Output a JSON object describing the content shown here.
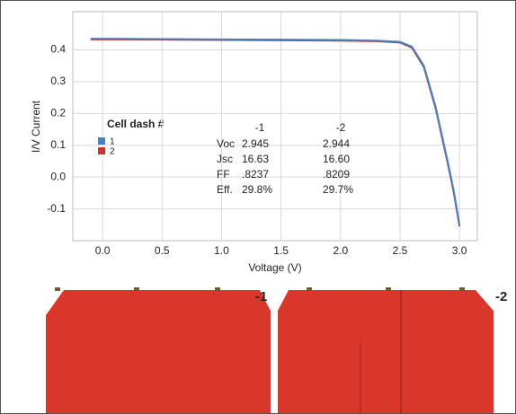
{
  "chart_data": {
    "type": "line",
    "x_label": "Voltage (V)",
    "y_label": "I/V Current",
    "x": [
      -0.1,
      0,
      0.5,
      1,
      1.5,
      2,
      2.3,
      2.5,
      2.6,
      2.7,
      2.8,
      2.9,
      2.95,
      3.0
    ],
    "series": [
      {
        "name": "1",
        "color": "#4a7fc0",
        "values": [
          0.435,
          0.435,
          0.434,
          0.433,
          0.432,
          0.431,
          0.429,
          0.425,
          0.41,
          0.35,
          0.22,
          0.05,
          -0.04,
          -0.15
        ]
      },
      {
        "name": "2",
        "color": "#c0392b",
        "values": [
          0.433,
          0.433,
          0.432,
          0.431,
          0.43,
          0.429,
          0.427,
          0.423,
          0.407,
          0.346,
          0.215,
          0.045,
          -0.045,
          -0.155
        ]
      }
    ],
    "legend_title": "Cell dash #",
    "xlim": [
      -0.25,
      3.15
    ],
    "ylim": [
      -0.2,
      0.52
    ],
    "xticks": [
      {
        "value": 0,
        "label": "0.0"
      },
      0.5,
      {
        "value": 1,
        "label": "1.0"
      },
      1.5,
      {
        "value": 2,
        "label": "2.0"
      },
      2.5,
      {
        "value": 3,
        "label": "3.0"
      }
    ],
    "yticks": [
      -0.1,
      {
        "value": 0,
        "label": "0.0"
      },
      0.1,
      0.2,
      0.3,
      0.4
    ],
    "grid": true,
    "table": {
      "columns": [
        "-1",
        "-2"
      ],
      "rows": [
        [
          "Voc",
          "2.945",
          "2.944"
        ],
        [
          "Jsc",
          "16.63",
          "16.60"
        ],
        [
          "FF",
          ".8237",
          ".8209"
        ],
        [
          "Eff.",
          "29.8%",
          "29.7%"
        ]
      ]
    }
  },
  "images": [
    {
      "label": "-1"
    },
    {
      "label": "-2"
    }
  ]
}
